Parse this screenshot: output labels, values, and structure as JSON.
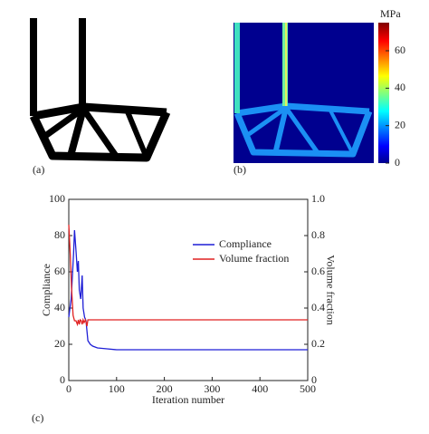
{
  "panel_labels": {
    "a": "(a)",
    "b": "(b)",
    "c": "(c)"
  },
  "colorbar": {
    "unit": "MPa",
    "lim": [
      0,
      75
    ],
    "ticks": [
      0,
      20,
      40,
      60
    ]
  },
  "chart_data": {
    "type": "line",
    "xlabel": "Iteration number",
    "ylabel": "Compliance",
    "y2label": "Volume fraction",
    "xlim": [
      0,
      500
    ],
    "xticks": [
      0,
      100,
      200,
      300,
      400,
      500
    ],
    "ylim": [
      0,
      100
    ],
    "yticks": [
      0,
      20,
      40,
      60,
      80,
      100
    ],
    "y2lim": [
      0,
      1
    ],
    "y2ticks": [
      0,
      0.2,
      0.4,
      0.6,
      0.8,
      {
        "value": 1,
        "label": "1.0"
      }
    ],
    "legend": "upper right",
    "series": [
      {
        "name": "Compliance",
        "color": "#1f1fd6",
        "x": [
          0,
          5,
          10,
          12,
          15,
          18,
          20,
          22,
          25,
          28,
          30,
          33,
          36,
          40,
          45,
          50,
          60,
          80,
          100,
          150,
          200,
          300,
          400,
          500
        ],
        "values": [
          35,
          45,
          70,
          83,
          72,
          60,
          66,
          50,
          45,
          58,
          40,
          35,
          33,
          22,
          20,
          19,
          18,
          17.5,
          17,
          17,
          17,
          17,
          17,
          17
        ]
      },
      {
        "name": "Volume fraction",
        "color": "#e02020",
        "axis": "y2",
        "x": [
          0,
          3,
          6,
          9,
          12,
          15,
          18,
          20,
          22,
          24,
          26,
          28,
          30,
          32,
          35,
          38,
          40,
          50,
          100,
          500
        ],
        "values": [
          0.86,
          0.7,
          0.5,
          0.36,
          0.33,
          0.33,
          0.31,
          0.335,
          0.31,
          0.335,
          0.33,
          0.31,
          0.335,
          0.32,
          0.335,
          0.3,
          0.335,
          0.335,
          0.335,
          0.335
        ]
      }
    ]
  }
}
